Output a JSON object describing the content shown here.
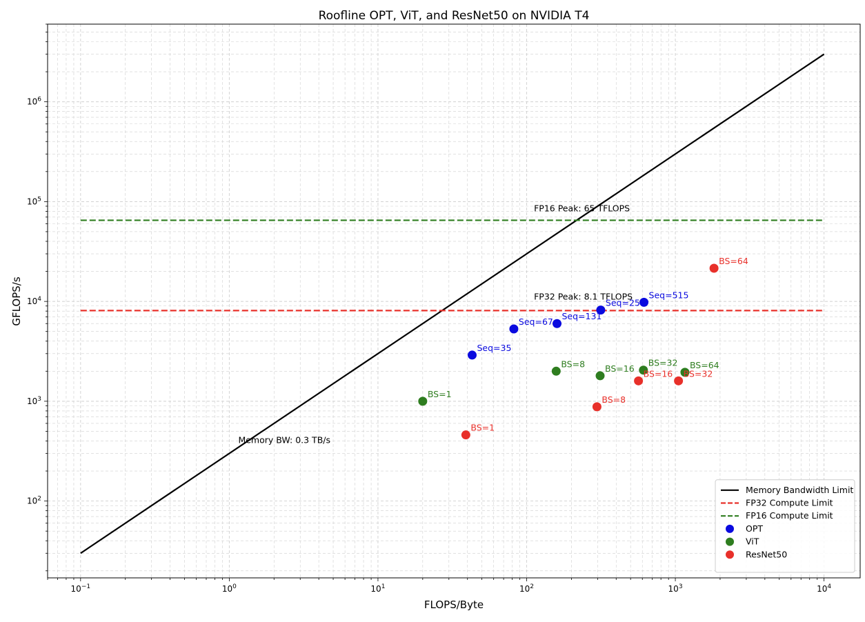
{
  "chart_data": {
    "type": "scatter",
    "title": "Roofline OPT, ViT, and ResNet50 on NVIDIA T4",
    "xlabel": "FLOPS/Byte",
    "ylabel": "GFLOPS/s",
    "xscale": "log",
    "yscale": "log",
    "xlim": [
      0.06,
      17500
    ],
    "ylim": [
      17,
      6000000
    ],
    "grid": true,
    "legend_position": "lower-right",
    "x_ticks": [
      {
        "value": 0.1,
        "base": "10",
        "exp": "−1"
      },
      {
        "value": 1,
        "base": "10",
        "exp": "0"
      },
      {
        "value": 10,
        "base": "10",
        "exp": "1"
      },
      {
        "value": 100,
        "base": "10",
        "exp": "2"
      },
      {
        "value": 1000,
        "base": "10",
        "exp": "3"
      },
      {
        "value": 10000,
        "base": "10",
        "exp": "4"
      }
    ],
    "y_ticks": [
      {
        "value": 100,
        "base": "10",
        "exp": "2"
      },
      {
        "value": 1000,
        "base": "10",
        "exp": "3"
      },
      {
        "value": 10000,
        "base": "10",
        "exp": "4"
      },
      {
        "value": 100000,
        "base": "10",
        "exp": "5"
      },
      {
        "value": 1000000,
        "base": "10",
        "exp": "6"
      }
    ],
    "lines": [
      {
        "name": "Memory Bandwidth Limit",
        "color": "#000000",
        "style": "solid",
        "x": [
          0.1,
          10000
        ],
        "y": [
          30,
          3000000
        ],
        "label": "Memory BW: 0.3 TB/s",
        "label_x": 1.15,
        "label_y": 380
      },
      {
        "name": "FP32 Compute Limit",
        "color": "#e8302a",
        "style": "dashed",
        "x": [
          0.1,
          10000
        ],
        "y": [
          8100,
          8100
        ],
        "label": "FP32 Peak: 8.1 TFLOPS",
        "label_x": 112,
        "label_y": 10400
      },
      {
        "name": "FP16 Compute Limit",
        "color": "#2e7d1f",
        "style": "dashed",
        "x": [
          0.1,
          10000
        ],
        "y": [
          65000,
          65000
        ],
        "label": "FP16 Peak: 65 TFLOPS",
        "label_x": 112,
        "label_y": 80000
      }
    ],
    "series": [
      {
        "name": "OPT",
        "color": "#0a0adf",
        "points": [
          {
            "x": 43,
            "y": 2900,
            "label": "Seq=35"
          },
          {
            "x": 82,
            "y": 5300,
            "label": "Seq=67"
          },
          {
            "x": 160,
            "y": 6000,
            "label": "Seq=131"
          },
          {
            "x": 315,
            "y": 8200,
            "label": "Seq=259"
          },
          {
            "x": 615,
            "y": 9800,
            "label": "Seq=515"
          }
        ]
      },
      {
        "name": "ViT",
        "color": "#2e7d1f",
        "points": [
          {
            "x": 20,
            "y": 1000,
            "label": "BS=1"
          },
          {
            "x": 158,
            "y": 2000,
            "label": "BS=8"
          },
          {
            "x": 312,
            "y": 1800,
            "label": "BS=16"
          },
          {
            "x": 610,
            "y": 2050,
            "label": "BS=32"
          },
          {
            "x": 1160,
            "y": 1950,
            "label": "BS=64"
          }
        ]
      },
      {
        "name": "ResNet50",
        "color": "#e8302a",
        "points": [
          {
            "x": 39,
            "y": 460,
            "label": "BS=1"
          },
          {
            "x": 297,
            "y": 880,
            "label": "BS=8"
          },
          {
            "x": 565,
            "y": 1600,
            "label": "BS=16"
          },
          {
            "x": 1050,
            "y": 1600,
            "label": "BS=32"
          },
          {
            "x": 1820,
            "y": 21500,
            "label": "BS=64"
          }
        ]
      }
    ]
  }
}
